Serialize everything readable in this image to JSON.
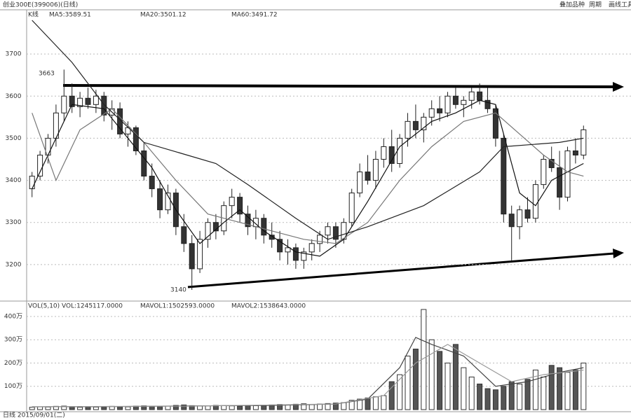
{
  "toolbar": [
    "叠加品种",
    "周期",
    "画线工具"
  ],
  "footer": "日线 2015/09/01(二)",
  "chart_data": [
    {
      "type": "candlestick",
      "title": "创业300E(399006)(日线)",
      "header": "K线",
      "ylim": [
        3130,
        3770
      ],
      "yticks": [
        3200,
        3300,
        3400,
        3500,
        3600,
        3700
      ],
      "grid": true,
      "annotations": [
        "3663",
        "3140"
      ],
      "ohlc": [
        [
          3380,
          3420,
          3360,
          3410
        ],
        [
          3410,
          3470,
          3400,
          3460
        ],
        [
          3460,
          3510,
          3440,
          3500
        ],
        [
          3500,
          3580,
          3480,
          3560
        ],
        [
          3560,
          3663,
          3540,
          3600
        ],
        [
          3600,
          3630,
          3560,
          3575
        ],
        [
          3575,
          3610,
          3550,
          3595
        ],
        [
          3595,
          3620,
          3570,
          3580
        ],
        [
          3580,
          3615,
          3560,
          3600
        ],
        [
          3600,
          3610,
          3540,
          3555
        ],
        [
          3555,
          3590,
          3520,
          3570
        ],
        [
          3570,
          3585,
          3500,
          3510
        ],
        [
          3510,
          3540,
          3480,
          3525
        ],
        [
          3525,
          3530,
          3460,
          3470
        ],
        [
          3470,
          3490,
          3400,
          3410
        ],
        [
          3410,
          3440,
          3360,
          3380
        ],
        [
          3380,
          3400,
          3310,
          3330
        ],
        [
          3330,
          3390,
          3320,
          3370
        ],
        [
          3370,
          3380,
          3270,
          3290
        ],
        [
          3290,
          3320,
          3230,
          3250
        ],
        [
          3250,
          3270,
          3140,
          3190
        ],
        [
          3190,
          3280,
          3180,
          3260
        ],
        [
          3260,
          3310,
          3240,
          3300
        ],
        [
          3300,
          3320,
          3260,
          3280
        ],
        [
          3280,
          3350,
          3270,
          3340
        ],
        [
          3340,
          3380,
          3310,
          3360
        ],
        [
          3360,
          3370,
          3300,
          3320
        ],
        [
          3320,
          3340,
          3270,
          3290
        ],
        [
          3290,
          3330,
          3260,
          3310
        ],
        [
          3310,
          3320,
          3250,
          3270
        ],
        [
          3270,
          3300,
          3240,
          3260
        ],
        [
          3260,
          3280,
          3210,
          3230
        ],
        [
          3230,
          3260,
          3200,
          3240
        ],
        [
          3240,
          3250,
          3190,
          3210
        ],
        [
          3210,
          3240,
          3190,
          3230
        ],
        [
          3230,
          3260,
          3210,
          3250
        ],
        [
          3250,
          3280,
          3230,
          3270
        ],
        [
          3270,
          3300,
          3250,
          3290
        ],
        [
          3290,
          3300,
          3240,
          3260
        ],
        [
          3260,
          3310,
          3250,
          3300
        ],
        [
          3300,
          3380,
          3290,
          3370
        ],
        [
          3370,
          3440,
          3360,
          3420
        ],
        [
          3420,
          3460,
          3390,
          3400
        ],
        [
          3400,
          3470,
          3380,
          3450
        ],
        [
          3450,
          3500,
          3430,
          3480
        ],
        [
          3480,
          3520,
          3420,
          3440
        ],
        [
          3440,
          3510,
          3430,
          3500
        ],
        [
          3500,
          3560,
          3480,
          3540
        ],
        [
          3540,
          3580,
          3500,
          3520
        ],
        [
          3520,
          3560,
          3490,
          3550
        ],
        [
          3550,
          3590,
          3530,
          3570
        ],
        [
          3570,
          3600,
          3540,
          3560
        ],
        [
          3560,
          3610,
          3550,
          3600
        ],
        [
          3600,
          3620,
          3570,
          3580
        ],
        [
          3580,
          3600,
          3550,
          3590
        ],
        [
          3590,
          3620,
          3570,
          3610
        ],
        [
          3610,
          3630,
          3580,
          3590
        ],
        [
          3590,
          3620,
          3560,
          3570
        ],
        [
          3570,
          3580,
          3480,
          3500
        ],
        [
          3500,
          3510,
          3300,
          3320
        ],
        [
          3320,
          3340,
          3210,
          3290
        ],
        [
          3290,
          3340,
          3260,
          3330
        ],
        [
          3330,
          3360,
          3300,
          3310
        ],
        [
          3310,
          3400,
          3300,
          3390
        ],
        [
          3390,
          3460,
          3380,
          3450
        ],
        [
          3450,
          3480,
          3420,
          3430
        ],
        [
          3430,
          3470,
          3330,
          3360
        ],
        [
          3360,
          3480,
          3350,
          3470
        ],
        [
          3470,
          3500,
          3440,
          3460
        ],
        [
          3460,
          3530,
          3450,
          3520
        ]
      ],
      "series": [
        {
          "name": "MA5:3589.51",
          "color": "#111",
          "x": [
            0,
            3,
            5,
            9,
            12,
            15,
            18,
            21,
            24,
            26,
            29,
            33,
            36,
            39,
            42,
            46,
            50,
            53,
            56,
            58,
            61,
            63,
            65,
            67,
            69
          ],
          "values": [
            3380,
            3500,
            3580,
            3570,
            3500,
            3430,
            3330,
            3250,
            3300,
            3330,
            3280,
            3230,
            3220,
            3260,
            3350,
            3480,
            3540,
            3560,
            3590,
            3580,
            3370,
            3340,
            3400,
            3420,
            3440
          ]
        },
        {
          "name": "MA20:3501.12",
          "color": "#777",
          "x": [
            0,
            3,
            6,
            10,
            14,
            18,
            22,
            26,
            30,
            34,
            38,
            42,
            46,
            50,
            54,
            58,
            61,
            64,
            67,
            69
          ],
          "values": [
            3560,
            3400,
            3520,
            3570,
            3490,
            3400,
            3320,
            3300,
            3280,
            3260,
            3250,
            3300,
            3400,
            3480,
            3540,
            3560,
            3510,
            3460,
            3420,
            3410
          ]
        },
        {
          "name": "MA60:3491.72",
          "color": "#222",
          "x": [
            0,
            5,
            9,
            14,
            23,
            27,
            33,
            37,
            42,
            49,
            56,
            59,
            66,
            69
          ],
          "values": [
            3780,
            3680,
            3580,
            3490,
            3440,
            3390,
            3310,
            3260,
            3290,
            3340,
            3420,
            3480,
            3490,
            3500
          ]
        }
      ]
    },
    {
      "type": "bar",
      "header": "VOL(5,10) VOL:1245117.0000",
      "ylim": [
        0,
        436
      ],
      "yticks": [
        {
          "value": 100,
          "label": "100万"
        },
        {
          "value": 200,
          "label": "200万"
        },
        {
          "value": 300,
          "label": "300万"
        },
        {
          "value": 400,
          "label": "400万"
        }
      ],
      "grid": true,
      "values": [
        10,
        12,
        11,
        14,
        15,
        12,
        10,
        13,
        11,
        12,
        14,
        13,
        12,
        15,
        16,
        14,
        13,
        15,
        18,
        20,
        17,
        15,
        16,
        18,
        17,
        16,
        15,
        18,
        17,
        19,
        20,
        22,
        21,
        23,
        25,
        22,
        24,
        26,
        28,
        30,
        40,
        45,
        50,
        55,
        60,
        120,
        150,
        230,
        260,
        430,
        300,
        250,
        200,
        280,
        180,
        140,
        110,
        90,
        85,
        100,
        120,
        110,
        130,
        170,
        140,
        190,
        180,
        160,
        170,
        200
      ],
      "series": [
        {
          "name": "MAVOL1:1502593.0000",
          "color": "#444",
          "x": [
            0,
            10,
            20,
            30,
            38,
            42,
            46,
            48,
            50,
            54,
            58,
            62,
            66,
            69
          ],
          "values": [
            12,
            13,
            16,
            18,
            24,
            45,
            180,
            310,
            280,
            230,
            100,
            120,
            160,
            180
          ]
        },
        {
          "name": "MAVOL2:1538643.0000",
          "color": "#999",
          "x": [
            0,
            20,
            38,
            44,
            48,
            52,
            56,
            60,
            64,
            69
          ],
          "values": [
            12,
            15,
            24,
            60,
            200,
            280,
            200,
            120,
            150,
            170
          ]
        }
      ]
    }
  ]
}
